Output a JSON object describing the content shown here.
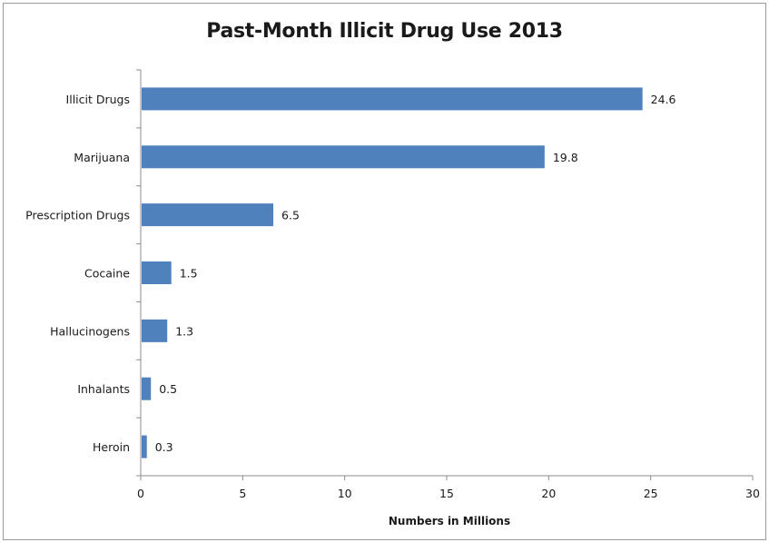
{
  "chart_data": {
    "type": "bar",
    "orientation": "horizontal",
    "title": "Past-Month Illicit Drug Use 2013",
    "xlabel": "Numbers in Millions",
    "ylabel": "",
    "categories": [
      "Illicit Drugs",
      "Marijuana",
      "Prescription Drugs",
      "Cocaine",
      "Hallucinogens",
      "Inhalants",
      "Heroin"
    ],
    "values": [
      24.6,
      19.8,
      6.5,
      1.5,
      1.3,
      0.5,
      0.3
    ],
    "data_labels": [
      "24.6",
      "19.8",
      "6.5",
      "1.5",
      "1.3",
      "0.5",
      "0.3"
    ],
    "xlim": [
      0,
      30
    ],
    "x_ticks": [
      0,
      5,
      10,
      15,
      20,
      25,
      30
    ],
    "grid": false,
    "legend": "none",
    "bar_color": "#4f81bd"
  }
}
